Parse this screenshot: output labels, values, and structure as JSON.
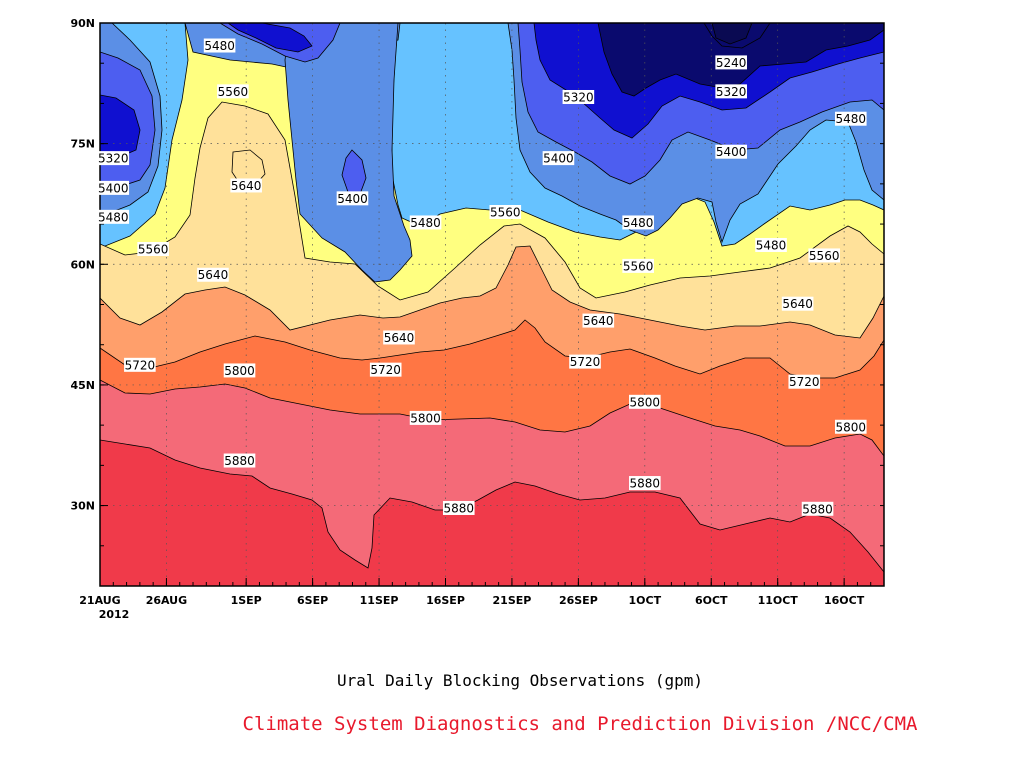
{
  "caption": {
    "title": "Ural Daily Blocking Observations (gpm)",
    "credit": "Climate System Diagnostics and Prediction Division /NCC/CMA"
  },
  "chart_data": {
    "type": "contour",
    "xlabel": "",
    "ylabel": "",
    "x_start_label": "21AUG",
    "x_year_label": "2012",
    "x_ticks": [
      {
        "day": 0,
        "label": "21AUG"
      },
      {
        "day": 5,
        "label": "26AUG"
      },
      {
        "day": 11,
        "label": "1SEP"
      },
      {
        "day": 16,
        "label": "6SEP"
      },
      {
        "day": 21,
        "label": "11SEP"
      },
      {
        "day": 26,
        "label": "16SEP"
      },
      {
        "day": 31,
        "label": "21SEP"
      },
      {
        "day": 36,
        "label": "26SEP"
      },
      {
        "day": 41,
        "label": "1OCT"
      },
      {
        "day": 46,
        "label": "6OCT"
      },
      {
        "day": 51,
        "label": "11OCT"
      },
      {
        "day": 56,
        "label": "16OCT"
      }
    ],
    "xlim": [
      0,
      59
    ],
    "ylim": [
      20,
      90
    ],
    "y_ticks": [
      {
        "lat": 30,
        "label": "30N"
      },
      {
        "lat": 45,
        "label": "45N"
      },
      {
        "lat": 60,
        "label": "60N"
      },
      {
        "lat": 75,
        "label": "75N"
      },
      {
        "lat": 90,
        "label": "90N"
      }
    ],
    "grid": true,
    "contour_levels": [
      5240,
      5320,
      5400,
      5480,
      5560,
      5640,
      5720,
      5800,
      5880
    ],
    "fill_colors": {
      "lt5240": "#0a0a6e",
      "5240_5320": "#1010d0",
      "5320_5400": "#4d5ef0",
      "5400_5480": "#5b8fe6",
      "5480_5560": "#66c2ff",
      "5560_5640": "#ffff80",
      "5640_5720": "#ffe19a",
      "5720_5800": "#ff9f6b",
      "5800_5880": "#ff7644",
      "5880_5960": "#f46a78",
      "gt5960": "#f03a4a"
    },
    "contour_labels": [
      {
        "text": "5480",
        "day": 9,
        "lat": 87.2
      },
      {
        "text": "5560",
        "day": 10,
        "lat": 81.5
      },
      {
        "text": "5320",
        "day": 1,
        "lat": 73.2
      },
      {
        "text": "5400",
        "day": 1,
        "lat": 69.5
      },
      {
        "text": "5480",
        "day": 1,
        "lat": 65.9
      },
      {
        "text": "5640",
        "day": 11,
        "lat": 69.8
      },
      {
        "text": "5400",
        "day": 19,
        "lat": 68.2
      },
      {
        "text": "5480",
        "day": 24.5,
        "lat": 65.2
      },
      {
        "text": "5560",
        "day": 30.5,
        "lat": 66.5
      },
      {
        "text": "5320",
        "day": 36,
        "lat": 80.8
      },
      {
        "text": "5400",
        "day": 34.5,
        "lat": 73.2
      },
      {
        "text": "5480",
        "day": 40.5,
        "lat": 65.2
      },
      {
        "text": "5240",
        "day": 47.5,
        "lat": 85.1
      },
      {
        "text": "5320",
        "day": 47.5,
        "lat": 81.5
      },
      {
        "text": "5400",
        "day": 47.5,
        "lat": 74
      },
      {
        "text": "5480",
        "day": 56.5,
        "lat": 78.1
      },
      {
        "text": "5480",
        "day": 50.5,
        "lat": 62.4
      },
      {
        "text": "5560",
        "day": 4,
        "lat": 61.9
      },
      {
        "text": "5640",
        "day": 8.5,
        "lat": 58.7
      },
      {
        "text": "5560",
        "day": 40.5,
        "lat": 59.8
      },
      {
        "text": "5560",
        "day": 54.5,
        "lat": 61.1
      },
      {
        "text": "5640",
        "day": 37.5,
        "lat": 53
      },
      {
        "text": "5640",
        "day": 22.5,
        "lat": 50.9
      },
      {
        "text": "5640",
        "day": 52.5,
        "lat": 55.1
      },
      {
        "text": "5720",
        "day": 3,
        "lat": 47.5
      },
      {
        "text": "5720",
        "day": 21.5,
        "lat": 46.9
      },
      {
        "text": "5720",
        "day": 36.5,
        "lat": 47.9
      },
      {
        "text": "5720",
        "day": 53,
        "lat": 45.4
      },
      {
        "text": "5800",
        "day": 10.5,
        "lat": 46.8
      },
      {
        "text": "5800",
        "day": 24.5,
        "lat": 40.9
      },
      {
        "text": "5800",
        "day": 41,
        "lat": 42.9
      },
      {
        "text": "5800",
        "day": 56.5,
        "lat": 39.8
      },
      {
        "text": "5880",
        "day": 10.5,
        "lat": 35.6
      },
      {
        "text": "5880",
        "day": 27,
        "lat": 29.7
      },
      {
        "text": "5880",
        "day": 41,
        "lat": 32.8
      },
      {
        "text": "5880",
        "day": 54,
        "lat": 29.6
      }
    ]
  }
}
